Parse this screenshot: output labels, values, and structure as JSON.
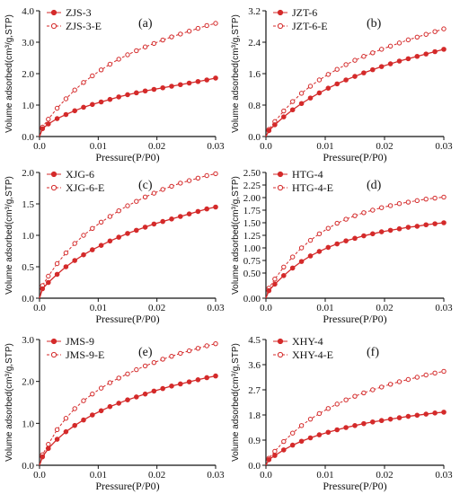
{
  "figure": {
    "colors": {
      "series": "#d42a2a",
      "axis": "#111111"
    }
  },
  "chart_data": [
    {
      "panel": "(a)",
      "type": "line",
      "xlabel": "Pressure(P/P0)",
      "ylabel": "Volume adsorbed(cm³/g,STP)",
      "xlim": [
        0,
        0.03
      ],
      "ylim": [
        0,
        4.0
      ],
      "xticks": [
        "0.0",
        "0.01",
        "0.02",
        "0.03"
      ],
      "yticks": [
        "0.0",
        "1.0",
        "2.0",
        "3.0",
        "4.0"
      ],
      "legend_position": "top-left",
      "grid": false,
      "x": [
        0.0005,
        0.0015,
        0.003,
        0.0045,
        0.006,
        0.0075,
        0.009,
        0.0105,
        0.012,
        0.0135,
        0.015,
        0.0165,
        0.018,
        0.0195,
        0.021,
        0.0225,
        0.024,
        0.0255,
        0.027,
        0.0285,
        0.03
      ],
      "series": [
        {
          "name": "ZJS-3",
          "marker": "filled-circle",
          "line": "solid",
          "values": [
            0.25,
            0.4,
            0.57,
            0.7,
            0.82,
            0.93,
            1.02,
            1.1,
            1.18,
            1.26,
            1.33,
            1.39,
            1.45,
            1.5,
            1.55,
            1.6,
            1.65,
            1.7,
            1.75,
            1.8,
            1.86
          ]
        },
        {
          "name": "ZJS-3-E",
          "marker": "open-circle",
          "line": "dashed",
          "values": [
            0.3,
            0.55,
            0.9,
            1.2,
            1.48,
            1.72,
            1.93,
            2.12,
            2.3,
            2.46,
            2.6,
            2.73,
            2.85,
            2.96,
            3.07,
            3.17,
            3.26,
            3.35,
            3.44,
            3.53,
            3.6
          ]
        }
      ]
    },
    {
      "panel": "(b)",
      "type": "line",
      "xlabel": "Pressure(P/P0)",
      "ylabel": "Volume adsorbed(cm³/g,STP)",
      "xlim": [
        0,
        0.03
      ],
      "ylim": [
        0,
        3.2
      ],
      "xticks": [
        "0.0",
        "0.01",
        "0.02",
        "0.03"
      ],
      "yticks": [
        "0.0",
        "0.8",
        "1.6",
        "2.4",
        "3.2"
      ],
      "legend_position": "top-left",
      "grid": false,
      "x": [
        0.0005,
        0.0015,
        0.003,
        0.0045,
        0.006,
        0.0075,
        0.009,
        0.0105,
        0.012,
        0.0135,
        0.015,
        0.0165,
        0.018,
        0.0195,
        0.021,
        0.0225,
        0.024,
        0.0255,
        0.027,
        0.0285,
        0.03
      ],
      "series": [
        {
          "name": "JZT-6",
          "marker": "filled-circle",
          "line": "solid",
          "values": [
            0.15,
            0.3,
            0.5,
            0.68,
            0.84,
            0.98,
            1.11,
            1.23,
            1.34,
            1.44,
            1.53,
            1.62,
            1.7,
            1.78,
            1.85,
            1.92,
            1.98,
            2.04,
            2.1,
            2.16,
            2.22
          ]
        },
        {
          "name": "JZT-6-E",
          "marker": "open-circle",
          "line": "dashed",
          "values": [
            0.18,
            0.38,
            0.65,
            0.89,
            1.1,
            1.28,
            1.44,
            1.58,
            1.71,
            1.83,
            1.94,
            2.04,
            2.13,
            2.22,
            2.3,
            2.38,
            2.46,
            2.53,
            2.6,
            2.67,
            2.74
          ]
        }
      ]
    },
    {
      "panel": "(c)",
      "type": "line",
      "xlabel": "Pressure(P/P0)",
      "ylabel": "Volume adsorbed(cm³/g,STP)",
      "xlim": [
        0,
        0.03
      ],
      "ylim": [
        0,
        2.0
      ],
      "xticks": [
        "0.0",
        "0.01",
        "0.02",
        "0.03"
      ],
      "yticks": [
        "0.0",
        "0.5",
        "1.0",
        "1.5",
        "2.0"
      ],
      "legend_position": "top-left",
      "grid": false,
      "x": [
        0.0005,
        0.0015,
        0.003,
        0.0045,
        0.006,
        0.0075,
        0.009,
        0.0105,
        0.012,
        0.0135,
        0.015,
        0.0165,
        0.018,
        0.0195,
        0.021,
        0.0225,
        0.024,
        0.0255,
        0.027,
        0.0285,
        0.03
      ],
      "series": [
        {
          "name": "XJG-6",
          "marker": "filled-circle",
          "line": "solid",
          "values": [
            0.15,
            0.25,
            0.38,
            0.5,
            0.6,
            0.69,
            0.77,
            0.84,
            0.91,
            0.97,
            1.03,
            1.08,
            1.13,
            1.18,
            1.22,
            1.26,
            1.3,
            1.34,
            1.38,
            1.42,
            1.45
          ]
        },
        {
          "name": "XJG-6-E",
          "marker": "open-circle",
          "line": "dashed",
          "values": [
            0.2,
            0.35,
            0.55,
            0.72,
            0.87,
            1.0,
            1.11,
            1.21,
            1.3,
            1.39,
            1.47,
            1.54,
            1.61,
            1.67,
            1.73,
            1.78,
            1.83,
            1.87,
            1.91,
            1.95,
            1.98
          ]
        }
      ]
    },
    {
      "panel": "(d)",
      "type": "line",
      "xlabel": "Pressure(P/P0)",
      "ylabel": "Volume adsorbed(cm³/g,STP)",
      "xlim": [
        0,
        0.03
      ],
      "ylim": [
        0,
        2.5
      ],
      "xticks": [
        "0.0",
        "0.01",
        "0.02",
        "0.03"
      ],
      "yticks": [
        "0.00",
        "0.50",
        "0.75",
        "1.00",
        "1.25",
        "1.50",
        "1.75",
        "2.00",
        "2.25",
        "2.50"
      ],
      "legend_position": "top-left",
      "grid": false,
      "x": [
        0.0005,
        0.0015,
        0.003,
        0.0045,
        0.006,
        0.0075,
        0.009,
        0.0105,
        0.012,
        0.0135,
        0.015,
        0.0165,
        0.018,
        0.0195,
        0.021,
        0.0225,
        0.024,
        0.0255,
        0.027,
        0.0285,
        0.03
      ],
      "series": [
        {
          "name": "HTG-4",
          "marker": "filled-circle",
          "line": "solid",
          "values": [
            0.15,
            0.28,
            0.45,
            0.6,
            0.73,
            0.84,
            0.93,
            1.01,
            1.08,
            1.14,
            1.19,
            1.24,
            1.28,
            1.32,
            1.35,
            1.38,
            1.41,
            1.43,
            1.46,
            1.48,
            1.5
          ]
        },
        {
          "name": "HTG-4-E",
          "marker": "open-circle",
          "line": "dashed",
          "values": [
            0.2,
            0.38,
            0.62,
            0.82,
            1.0,
            1.15,
            1.28,
            1.39,
            1.49,
            1.57,
            1.64,
            1.7,
            1.75,
            1.8,
            1.84,
            1.88,
            1.91,
            1.94,
            1.97,
            1.99,
            2.01
          ]
        }
      ]
    },
    {
      "panel": "(e)",
      "type": "line",
      "xlabel": "Pressure(P/P0)",
      "ylabel": "Volume adsorbed(cm³/g,STP)",
      "xlim": [
        0,
        0.03
      ],
      "ylim": [
        0,
        3.0
      ],
      "xticks": [
        "0.0",
        "0.01",
        "0.02",
        "0.03"
      ],
      "yticks": [
        "0.0",
        "1.0",
        "2.0",
        "3.0"
      ],
      "legend_position": "top-left",
      "grid": false,
      "x": [
        0.0005,
        0.0015,
        0.003,
        0.0045,
        0.006,
        0.0075,
        0.009,
        0.0105,
        0.012,
        0.0135,
        0.015,
        0.0165,
        0.018,
        0.0195,
        0.021,
        0.0225,
        0.024,
        0.0255,
        0.027,
        0.0285,
        0.03
      ],
      "series": [
        {
          "name": "JMS-9",
          "marker": "filled-circle",
          "line": "solid",
          "values": [
            0.2,
            0.4,
            0.62,
            0.8,
            0.95,
            1.08,
            1.2,
            1.3,
            1.4,
            1.48,
            1.56,
            1.63,
            1.7,
            1.77,
            1.83,
            1.89,
            1.94,
            1.99,
            2.04,
            2.09,
            2.13
          ]
        },
        {
          "name": "JMS-9-E",
          "marker": "open-circle",
          "line": "dashed",
          "values": [
            0.25,
            0.5,
            0.85,
            1.12,
            1.35,
            1.54,
            1.7,
            1.84,
            1.97,
            2.08,
            2.18,
            2.28,
            2.37,
            2.45,
            2.53,
            2.6,
            2.67,
            2.73,
            2.79,
            2.85,
            2.9
          ]
        }
      ]
    },
    {
      "panel": "(f)",
      "type": "line",
      "xlabel": "Pressure(P/P0)",
      "ylabel": "Volume adsorbed(cm³/g,STP)",
      "xlim": [
        0,
        0.03
      ],
      "ylim": [
        0,
        4.5
      ],
      "xticks": [
        "0.0",
        "0.01",
        "0.02",
        "0.03"
      ],
      "yticks": [
        "0.0",
        "0.9",
        "1.8",
        "2.7",
        "3.6",
        "4.5"
      ],
      "legend_position": "top-left",
      "grid": false,
      "x": [
        0.0005,
        0.0015,
        0.003,
        0.0045,
        0.006,
        0.0075,
        0.009,
        0.0105,
        0.012,
        0.0135,
        0.015,
        0.0165,
        0.018,
        0.0195,
        0.021,
        0.0225,
        0.024,
        0.0255,
        0.027,
        0.0285,
        0.03
      ],
      "series": [
        {
          "name": "XHY-4",
          "marker": "filled-circle",
          "line": "solid",
          "values": [
            0.2,
            0.35,
            0.55,
            0.72,
            0.86,
            0.98,
            1.09,
            1.18,
            1.27,
            1.35,
            1.42,
            1.49,
            1.55,
            1.6,
            1.65,
            1.7,
            1.75,
            1.79,
            1.83,
            1.87,
            1.9
          ]
        },
        {
          "name": "XHY-4-E",
          "marker": "open-circle",
          "line": "dashed",
          "values": [
            0.25,
            0.5,
            0.85,
            1.15,
            1.42,
            1.65,
            1.85,
            2.03,
            2.19,
            2.34,
            2.47,
            2.59,
            2.7,
            2.8,
            2.9,
            2.99,
            3.07,
            3.15,
            3.23,
            3.3,
            3.36
          ]
        }
      ]
    }
  ]
}
